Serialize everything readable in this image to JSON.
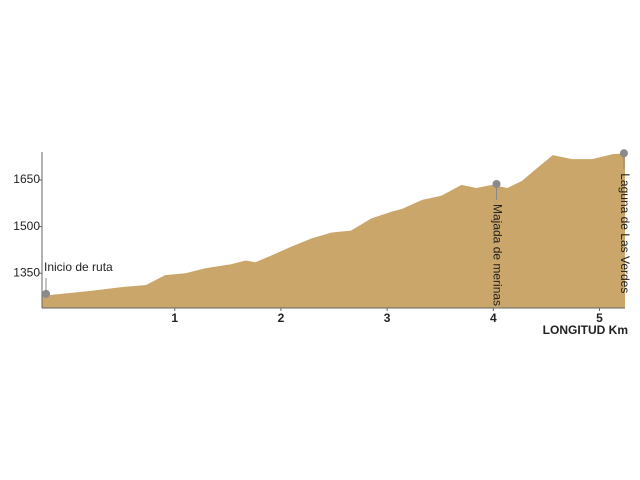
{
  "chart_data": {
    "type": "area",
    "x": [
      -0.25,
      -0.08,
      0.21,
      0.49,
      0.73,
      0.91,
      1.1,
      1.29,
      1.53,
      1.67,
      1.76,
      1.91,
      2.1,
      2.29,
      2.48,
      2.66,
      2.85,
      3.04,
      3.14,
      3.33,
      3.51,
      3.7,
      3.84,
      3.99,
      4.13,
      4.27,
      4.41,
      4.56,
      4.74,
      4.93,
      5.12,
      5.24
    ],
    "values": [
      1277,
      1283,
      1293,
      1305,
      1312,
      1344,
      1350,
      1366,
      1379,
      1391,
      1385,
      1407,
      1436,
      1462,
      1481,
      1487,
      1526,
      1548,
      1557,
      1586,
      1599,
      1634,
      1624,
      1634,
      1624,
      1647,
      1688,
      1730,
      1717,
      1717,
      1733,
      1736
    ],
    "color": "#caa66a",
    "xlim": [
      -0.25,
      5.24
    ],
    "xticks": [
      1,
      2,
      3,
      4,
      5
    ],
    "ylim": [
      1238,
      1740
    ],
    "yticks": [
      1350,
      1500,
      1650
    ],
    "x_label": "LONGITUD Km",
    "annotations": [
      {
        "text": "Inicio de ruta",
        "x": -0.25,
        "y": 1277,
        "vertical": false
      },
      {
        "text": "Majada de merinas",
        "x": 4.03,
        "y": 1637,
        "vertical": true
      },
      {
        "text": "Laguna de Las Verdes",
        "x": 5.23,
        "y": 1736,
        "vertical": true
      }
    ]
  }
}
